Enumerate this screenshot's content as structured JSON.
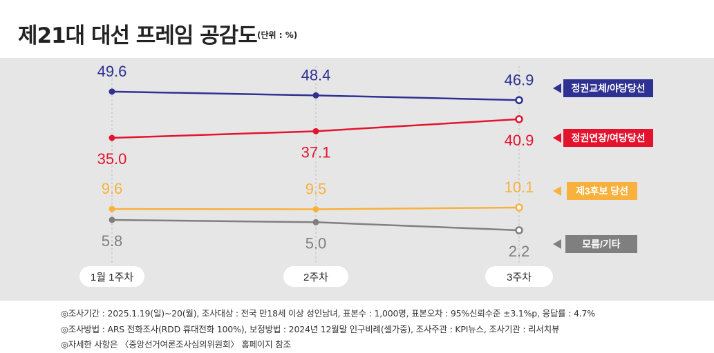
{
  "header": {
    "title": "제21대 대선 프레임 공감도",
    "unit": "(단위 : %)"
  },
  "chart_data": {
    "type": "line",
    "title": "제21대 대선 프레임 공감도",
    "unit": "(단위 : %)",
    "categories": [
      "1월 1주차",
      "2주차",
      "3주차"
    ],
    "ylim": [
      0,
      55
    ],
    "grid": false,
    "legend": "right",
    "series": [
      {
        "name": "정권교체/야당당선",
        "values": [
          49.6,
          48.4,
          46.9
        ],
        "labels": [
          "49.6",
          "48.4",
          "46.9"
        ],
        "color": "#2e3192",
        "label_pos": "above"
      },
      {
        "name": "정권연장/여당당선",
        "values": [
          35.0,
          37.1,
          40.9
        ],
        "labels": [
          "35.0",
          "37.1",
          "40.9"
        ],
        "color": "#e3132e",
        "label_pos": "below"
      },
      {
        "name": "제3후보 당선",
        "values": [
          9.6,
          9.5,
          10.1
        ],
        "labels": [
          "9.6",
          "9.5",
          "10.1"
        ],
        "color": "#f9b13d",
        "label_pos": "above"
      },
      {
        "name": "모름/기타",
        "values": [
          5.8,
          5.0,
          2.2
        ],
        "labels": [
          "5.8",
          "5.0",
          "2.2"
        ],
        "color": "#7f7f7f",
        "label_pos": "below"
      }
    ]
  },
  "footnotes": [
    "◎조사기간 : 2025.1.19(일)~20(월), 조사대상 : 전국 만18세 이상 성인남녀, 표본수 : 1,000명, 표본오차 : 95%신뢰수준 ±3.1%p, 응답률 : 4.7%",
    "◎조사방법 : ARS 전화조사(RDD 휴대전화 100%), 보정방법 : 2024년 12월말 인구비례(셀가중), 조사주관 : KPI뉴스, 조사기관 : 리서치뷰",
    "◎자세한 사항은 〈중앙선거여론조사심의위원회〉 홈페이지 참조"
  ]
}
